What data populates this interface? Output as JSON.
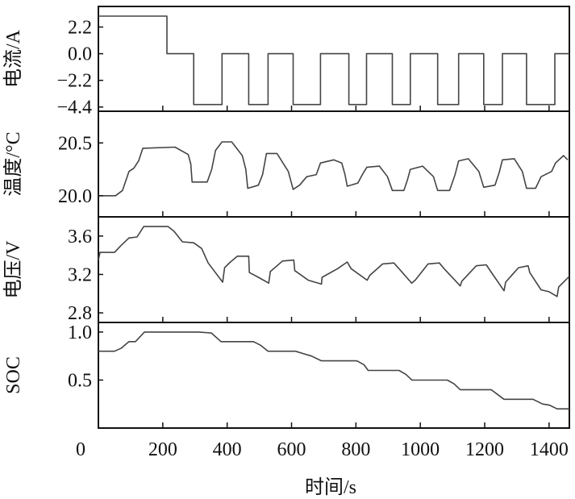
{
  "chart_data": {
    "type": "line",
    "xlabel": "时间/s",
    "xlim": [
      0,
      1463
    ],
    "xticks": [
      0,
      200,
      400,
      600,
      800,
      1000,
      1200,
      1400
    ],
    "xtick_labels": [
      "0",
      "200",
      "400",
      "600",
      "800",
      "1000",
      "1200",
      "1400"
    ],
    "grid": false,
    "panels": [
      {
        "name": "current",
        "ylabel": "电流/A",
        "ylim": [
          -4.75,
          3.9
        ],
        "yticks": [
          2.2,
          0.0,
          -2.2,
          -4.4
        ],
        "ytick_labels": [
          "2.2",
          "0.0",
          "−2.2",
          "−4.4"
        ],
        "points": [
          [
            0,
            3.1
          ],
          [
            213,
            3.1
          ],
          [
            213,
            0
          ],
          [
            296,
            0
          ],
          [
            296,
            -4.2
          ],
          [
            384,
            -4.2
          ],
          [
            384,
            0
          ],
          [
            467,
            0
          ],
          [
            467,
            -4.2
          ],
          [
            527,
            -4.2
          ],
          [
            527,
            0
          ],
          [
            605,
            0
          ],
          [
            605,
            -4.2
          ],
          [
            690,
            -4.2
          ],
          [
            690,
            0
          ],
          [
            778,
            0
          ],
          [
            778,
            -4.2
          ],
          [
            833,
            -4.2
          ],
          [
            833,
            0
          ],
          [
            913,
            0
          ],
          [
            913,
            -4.2
          ],
          [
            969,
            -4.2
          ],
          [
            969,
            0
          ],
          [
            1054,
            0
          ],
          [
            1054,
            -4.2
          ],
          [
            1119,
            -4.2
          ],
          [
            1119,
            0
          ],
          [
            1197,
            0
          ],
          [
            1197,
            -4.2
          ],
          [
            1255,
            -4.2
          ],
          [
            1255,
            0
          ],
          [
            1330,
            0
          ],
          [
            1330,
            -4.2
          ],
          [
            1418,
            -4.2
          ],
          [
            1418,
            0
          ],
          [
            1463,
            0
          ]
        ]
      },
      {
        "name": "temperature",
        "ylabel": "温度/°C",
        "ylim": [
          19.8,
          20.8
        ],
        "yticks": [
          20.5,
          20.0
        ],
        "ytick_labels": [
          "20.5",
          "20.0"
        ],
        "points": [
          [
            0,
            20.0
          ],
          [
            53,
            20.0
          ],
          [
            75,
            20.05
          ],
          [
            95,
            20.23
          ],
          [
            110,
            20.26
          ],
          [
            125,
            20.33
          ],
          [
            138,
            20.45
          ],
          [
            238,
            20.46
          ],
          [
            279,
            20.39
          ],
          [
            287,
            20.3
          ],
          [
            291,
            20.13
          ],
          [
            338,
            20.13
          ],
          [
            352,
            20.25
          ],
          [
            364,
            20.43
          ],
          [
            384,
            20.51
          ],
          [
            414,
            20.51
          ],
          [
            447,
            20.38
          ],
          [
            458,
            20.25
          ],
          [
            464,
            20.07
          ],
          [
            497,
            20.1
          ],
          [
            510,
            20.2
          ],
          [
            522,
            20.4
          ],
          [
            555,
            20.4
          ],
          [
            590,
            20.23
          ],
          [
            605,
            20.06
          ],
          [
            625,
            20.1
          ],
          [
            647,
            20.18
          ],
          [
            677,
            20.2
          ],
          [
            690,
            20.31
          ],
          [
            731,
            20.34
          ],
          [
            756,
            20.31
          ],
          [
            766,
            20.2
          ],
          [
            773,
            20.09
          ],
          [
            806,
            20.12
          ],
          [
            820,
            20.2
          ],
          [
            834,
            20.27
          ],
          [
            873,
            20.28
          ],
          [
            898,
            20.18
          ],
          [
            913,
            20.05
          ],
          [
            949,
            20.05
          ],
          [
            960,
            20.15
          ],
          [
            969,
            20.25
          ],
          [
            1007,
            20.28
          ],
          [
            1041,
            20.18
          ],
          [
            1054,
            20.05
          ],
          [
            1091,
            20.05
          ],
          [
            1108,
            20.2
          ],
          [
            1119,
            20.33
          ],
          [
            1149,
            20.35
          ],
          [
            1182,
            20.23
          ],
          [
            1197,
            20.08
          ],
          [
            1232,
            20.1
          ],
          [
            1245,
            20.22
          ],
          [
            1255,
            20.34
          ],
          [
            1292,
            20.35
          ],
          [
            1317,
            20.23
          ],
          [
            1330,
            20.07
          ],
          [
            1358,
            20.07
          ],
          [
            1375,
            20.18
          ],
          [
            1408,
            20.23
          ],
          [
            1420,
            20.31
          ],
          [
            1445,
            20.38
          ],
          [
            1458,
            20.34
          ]
        ]
      },
      {
        "name": "voltage",
        "ylabel": "电压/V",
        "ylim": [
          2.7,
          3.8
        ],
        "yticks": [
          3.6,
          3.2,
          2.8
        ],
        "ytick_labels": [
          "3.6",
          "3.2",
          "2.8"
        ],
        "points": [
          [
            0,
            3.35
          ],
          [
            5,
            3.43
          ],
          [
            50,
            3.43
          ],
          [
            70,
            3.5
          ],
          [
            95,
            3.58
          ],
          [
            120,
            3.59
          ],
          [
            141,
            3.7
          ],
          [
            216,
            3.7
          ],
          [
            235,
            3.65
          ],
          [
            261,
            3.54
          ],
          [
            296,
            3.53
          ],
          [
            321,
            3.47
          ],
          [
            341,
            3.32
          ],
          [
            386,
            3.12
          ],
          [
            392,
            3.27
          ],
          [
            410,
            3.33
          ],
          [
            432,
            3.39
          ],
          [
            467,
            3.39
          ],
          [
            469,
            3.22
          ],
          [
            497,
            3.17
          ],
          [
            529,
            3.11
          ],
          [
            534,
            3.23
          ],
          [
            572,
            3.34
          ],
          [
            607,
            3.35
          ],
          [
            610,
            3.24
          ],
          [
            652,
            3.14
          ],
          [
            693,
            3.1
          ],
          [
            695,
            3.17
          ],
          [
            743,
            3.26
          ],
          [
            773,
            3.33
          ],
          [
            785,
            3.26
          ],
          [
            835,
            3.14
          ],
          [
            843,
            3.19
          ],
          [
            883,
            3.31
          ],
          [
            918,
            3.32
          ],
          [
            934,
            3.26
          ],
          [
            973,
            3.11
          ],
          [
            984,
            3.14
          ],
          [
            1024,
            3.31
          ],
          [
            1059,
            3.32
          ],
          [
            1074,
            3.26
          ],
          [
            1124,
            3.08
          ],
          [
            1129,
            3.13
          ],
          [
            1174,
            3.29
          ],
          [
            1205,
            3.3
          ],
          [
            1215,
            3.25
          ],
          [
            1260,
            3.03
          ],
          [
            1265,
            3.12
          ],
          [
            1305,
            3.27
          ],
          [
            1335,
            3.29
          ],
          [
            1340,
            3.22
          ],
          [
            1375,
            3.04
          ],
          [
            1400,
            3.02
          ],
          [
            1425,
            2.97
          ],
          [
            1430,
            3.07
          ],
          [
            1463,
            3.18
          ]
        ]
      },
      {
        "name": "soc",
        "ylabel": "SOC",
        "ylim": [
          0.0,
          1.1
        ],
        "yticks": [
          1.0,
          0.5
        ],
        "ytick_labels": [
          "1.0",
          "0.5"
        ],
        "points": [
          [
            0,
            0.8
          ],
          [
            50,
            0.8
          ],
          [
            70,
            0.83
          ],
          [
            95,
            0.9
          ],
          [
            115,
            0.9
          ],
          [
            143,
            1.0
          ],
          [
            311,
            1.0
          ],
          [
            351,
            0.99
          ],
          [
            381,
            0.9
          ],
          [
            482,
            0.9
          ],
          [
            505,
            0.86
          ],
          [
            527,
            0.8
          ],
          [
            612,
            0.8
          ],
          [
            662,
            0.75
          ],
          [
            693,
            0.7
          ],
          [
            803,
            0.7
          ],
          [
            825,
            0.66
          ],
          [
            838,
            0.6
          ],
          [
            934,
            0.6
          ],
          [
            955,
            0.56
          ],
          [
            974,
            0.5
          ],
          [
            1084,
            0.5
          ],
          [
            1105,
            0.46
          ],
          [
            1124,
            0.4
          ],
          [
            1220,
            0.4
          ],
          [
            1240,
            0.35
          ],
          [
            1260,
            0.3
          ],
          [
            1350,
            0.3
          ],
          [
            1380,
            0.25
          ],
          [
            1400,
            0.24
          ],
          [
            1425,
            0.2
          ],
          [
            1463,
            0.2
          ]
        ]
      }
    ],
    "line_color": "#444444",
    "axis_color": "#111111"
  }
}
